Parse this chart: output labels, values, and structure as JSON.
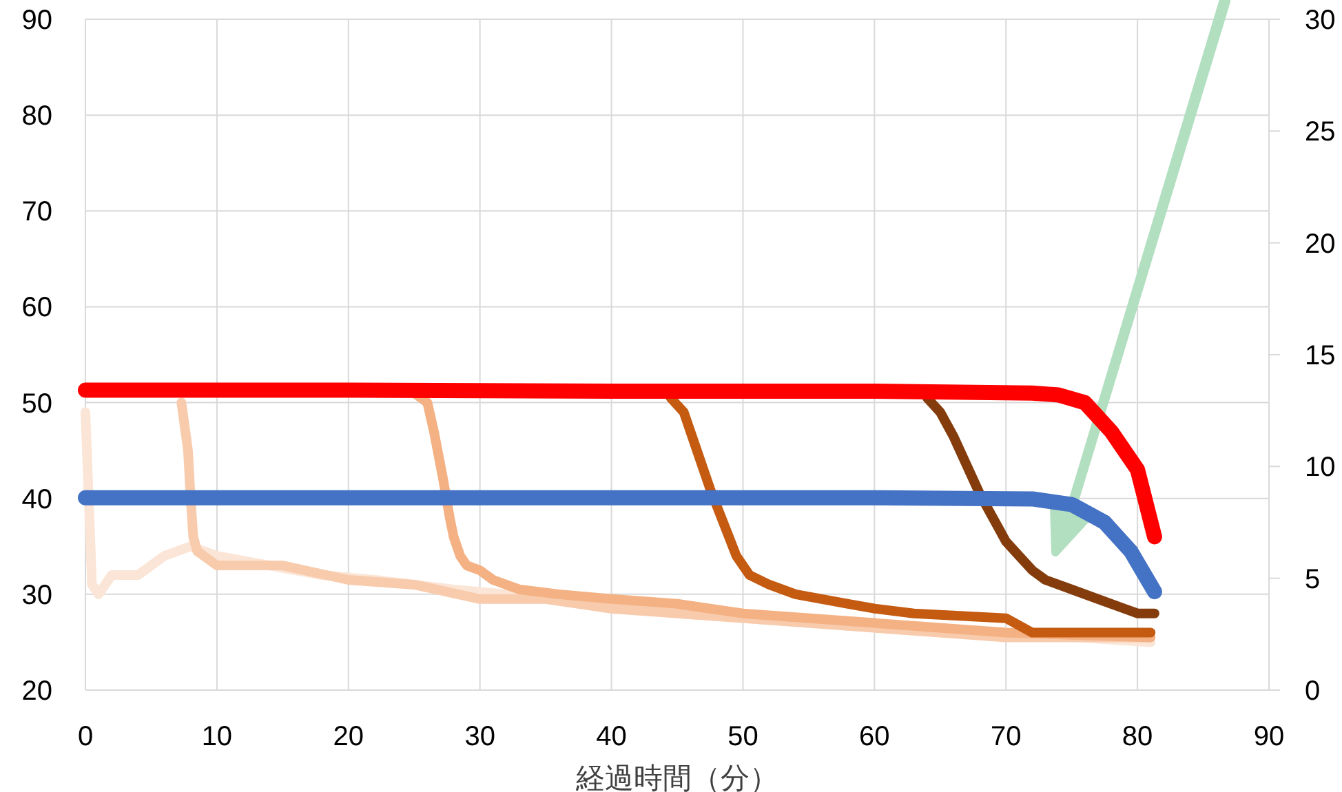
{
  "chart_data": {
    "type": "line",
    "xlabel": "経過時間（分）",
    "xlim": [
      0,
      90
    ],
    "xticks": [
      0,
      10,
      20,
      30,
      40,
      50,
      60,
      70,
      80,
      90
    ],
    "ylim": [
      20,
      90
    ],
    "yticks": [
      20,
      30,
      40,
      50,
      60,
      70,
      80,
      90
    ],
    "y2lim": [
      0,
      30
    ],
    "y2ticks": [
      0,
      5,
      10,
      15,
      20,
      25,
      30
    ],
    "grid": true,
    "marker": "none",
    "line_style": "solid",
    "series": [
      {
        "color": "#fbe5d6",
        "x": [
          0,
          0.5,
          1,
          2,
          4,
          5,
          6,
          8,
          10,
          14,
          18,
          22,
          28,
          32,
          40,
          45,
          50,
          55,
          60,
          70,
          81
        ],
        "values": [
          49,
          31,
          30,
          32,
          32,
          33,
          34,
          35,
          34,
          33,
          32,
          31.5,
          30.5,
          30,
          29,
          28,
          27.5,
          27,
          26.5,
          26,
          25
        ]
      },
      {
        "color": "#f8cbad",
        "x": [
          7.3,
          7.8,
          8,
          8.2,
          8.5,
          9,
          10,
          15,
          20,
          25,
          30,
          35,
          40,
          50,
          60,
          70,
          81
        ],
        "values": [
          50,
          45,
          40,
          36,
          34.5,
          34,
          33,
          33,
          31.5,
          31,
          29.5,
          29.5,
          28.5,
          27.5,
          26.5,
          25.5,
          25.5
        ]
      },
      {
        "color": "#f4b183",
        "x": [
          25,
          26,
          26.5,
          27.2,
          27.7,
          28,
          28.5,
          29,
          30,
          31,
          33,
          36,
          40,
          45,
          50,
          60,
          70,
          81
        ],
        "values": [
          51,
          50,
          47,
          42,
          38,
          36,
          34,
          33,
          32.5,
          31.5,
          30.5,
          30,
          29.5,
          29,
          28,
          27,
          26,
          25.5
        ]
      },
      {
        "color": "#c55a11",
        "x": [
          44.5,
          45.5,
          46.5,
          47.5,
          48.5,
          49.5,
          50.5,
          52,
          54,
          56,
          58,
          60,
          63,
          70,
          72,
          81
        ],
        "values": [
          50.5,
          49,
          45,
          41,
          37.5,
          34,
          32,
          31,
          30,
          29.5,
          29,
          28.5,
          28,
          27.5,
          26,
          26
        ]
      },
      {
        "color": "#843c0c",
        "x": [
          64,
          65,
          66,
          67,
          68,
          69,
          70,
          71,
          72,
          73,
          75,
          77,
          79,
          80,
          81.3
        ],
        "values": [
          50.5,
          49,
          46.5,
          43.5,
          40.5,
          38,
          35.5,
          34,
          32.5,
          31.5,
          30.5,
          29.5,
          28.5,
          28,
          28
        ]
      },
      {
        "color": "#ff0000",
        "x": [
          0,
          20,
          40,
          60,
          72,
          74,
          76,
          78,
          80,
          81.3
        ],
        "values": [
          51.3,
          51.3,
          51.2,
          51.2,
          51,
          50.8,
          50,
          47,
          43,
          36
        ]
      },
      {
        "color": "#4472c4",
        "axis": "y2",
        "x": [
          0,
          20,
          40,
          60,
          72,
          75,
          77.5,
          79.5,
          81.3
        ],
        "values": [
          8.6,
          8.6,
          8.6,
          8.6,
          8.55,
          8.3,
          7.5,
          6.2,
          4.4
        ]
      }
    ]
  }
}
